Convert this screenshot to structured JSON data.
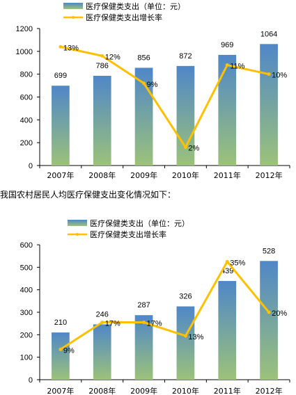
{
  "page": {
    "middle_text": "我国农村居民人均医疗保健支出变化情况如下："
  },
  "chart_data": [
    {
      "type": "bar",
      "categories": [
        "2007年",
        "2008年",
        "2009年",
        "2010年",
        "2011年",
        "2012年"
      ],
      "series": [
        {
          "name": "医疗保健类支出（单位：元）",
          "kind": "bar",
          "values": [
            699,
            786,
            856,
            872,
            969,
            1064
          ]
        },
        {
          "name": "医疗保健类支出增长率",
          "kind": "line",
          "values": [
            13,
            12,
            9,
            2,
            11,
            10
          ],
          "unit": "%"
        }
      ],
      "data_labels": [
        "699",
        "786",
        "856",
        "872",
        "969",
        "1064"
      ],
      "rate_labels": [
        "13%",
        "12%",
        "9%",
        "2%",
        "11%",
        "10%"
      ],
      "y_ticks": [
        "0",
        "200",
        "400",
        "600",
        "800",
        "1000",
        "1200"
      ],
      "ylim": [
        0,
        1200
      ],
      "rate_ylim": [
        0,
        15
      ],
      "legend": "top",
      "grid": false,
      "colors": {
        "bar_top": "#4f87c8",
        "bar_bottom": "#9cc27a",
        "line": "#ffc000"
      }
    },
    {
      "type": "bar",
      "categories": [
        "2007年",
        "2008年",
        "2009年",
        "2010年",
        "2011年",
        "2012年"
      ],
      "series": [
        {
          "name": "医疗保健类支出（单位：元）",
          "kind": "bar",
          "values": [
            210,
            246,
            287,
            326,
            439,
            528
          ]
        },
        {
          "name": "医疗保健类支出增长率",
          "kind": "line",
          "values": [
            9,
            17,
            17,
            13,
            35,
            20
          ],
          "unit": "%"
        }
      ],
      "data_labels": [
        "210",
        "246",
        "287",
        "326",
        "439",
        "528"
      ],
      "rate_labels": [
        "9%",
        "17%",
        "17%",
        "13%",
        "35%",
        "20%"
      ],
      "y_ticks": [
        "0",
        "100",
        "200",
        "300",
        "400",
        "500",
        "600"
      ],
      "ylim": [
        0,
        600
      ],
      "rate_ylim": [
        0,
        40
      ],
      "legend": "top",
      "grid": false,
      "colors": {
        "bar_top": "#4f87c8",
        "bar_bottom": "#9cc27a",
        "line": "#ffc000"
      }
    }
  ]
}
